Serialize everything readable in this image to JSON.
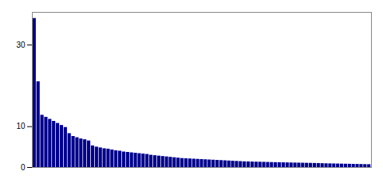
{
  "chart_data": {
    "type": "bar",
    "categories": [
      null,
      null,
      null,
      null,
      null,
      null,
      null,
      null,
      null,
      null,
      null,
      null,
      null,
      null,
      null,
      null,
      null,
      null,
      null,
      null,
      null,
      null,
      null,
      null,
      null,
      null,
      null,
      null,
      null,
      null,
      null,
      null,
      null,
      null,
      null,
      null,
      null,
      null,
      null,
      null,
      null,
      null,
      null,
      null,
      null,
      null,
      null,
      null,
      null,
      null,
      null,
      null,
      null,
      null,
      null,
      null,
      null,
      null,
      null,
      null,
      null,
      null,
      null,
      null,
      null,
      null,
      null,
      null,
      null,
      null,
      null,
      null,
      null,
      null,
      null,
      null,
      null,
      null,
      null,
      null,
      null,
      null,
      null,
      null,
      null,
      null,
      null
    ],
    "values": [
      36.5,
      21.0,
      12.8,
      12.3,
      11.8,
      11.3,
      10.8,
      10.3,
      9.8,
      8.3,
      7.6,
      7.3,
      7.0,
      6.8,
      6.5,
      5.3,
      5.0,
      4.8,
      4.6,
      4.5,
      4.3,
      4.1,
      4.0,
      3.8,
      3.7,
      3.6,
      3.5,
      3.4,
      3.3,
      3.2,
      3.0,
      2.9,
      2.8,
      2.7,
      2.6,
      2.5,
      2.4,
      2.3,
      2.2,
      2.15,
      2.1,
      2.05,
      2.0,
      1.95,
      1.9,
      1.85,
      1.8,
      1.75,
      1.7,
      1.65,
      1.6,
      1.55,
      1.5,
      1.45,
      1.4,
      1.38,
      1.35,
      1.32,
      1.3,
      1.28,
      1.25,
      1.22,
      1.2,
      1.18,
      1.16,
      1.14,
      1.12,
      1.1,
      1.08,
      1.06,
      1.04,
      1.02,
      1.0,
      0.98,
      0.95,
      0.92,
      0.9,
      0.88,
      0.86,
      0.84,
      0.82,
      0.8,
      0.78,
      0.76,
      0.74,
      0.72,
      0.7
    ],
    "color": "#00008B",
    "ylim": [
      0,
      38
    ],
    "yticks": [
      0,
      10,
      30
    ],
    "tick_labels": "y"
  }
}
